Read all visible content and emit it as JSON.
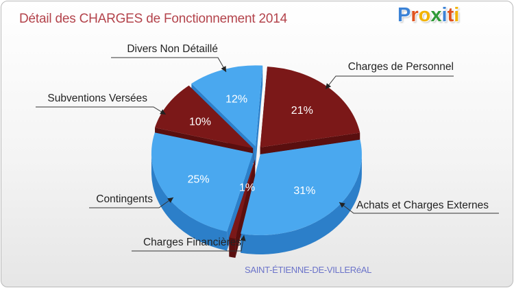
{
  "header": {
    "title": "Détail des CHARGES de Fonctionnement 2014",
    "subtitle": "SAINT-ÉTIENNE-DE-VILLERéAL"
  },
  "logo": {
    "letters": [
      {
        "char": "P",
        "color": "#3b82d6"
      },
      {
        "char": "r",
        "color": "#e0531f"
      },
      {
        "char": "o",
        "color": "#f2b300"
      },
      {
        "char": "x",
        "color": "#2f9a38"
      },
      {
        "char": "i",
        "color": "#3b82d6"
      },
      {
        "char": "t",
        "color": "#e0531f"
      },
      {
        "char": "i",
        "color": "#f2b300"
      }
    ]
  },
  "colors": {
    "blue_top": "#4aa8ef",
    "blue_side": "#2c7fc9",
    "red_top": "#7b1818",
    "red_side": "#5a0f0f",
    "title": "#b3434b",
    "subtitle": "#6b73c9"
  },
  "chart_data": {
    "type": "pie",
    "title": "Détail des CHARGES de Fonctionnement 2014",
    "subtitle": "SAINT-ÉTIENNE-DE-VILLERéAL",
    "unit": "%",
    "slices": [
      {
        "label": "Charges de Personnel",
        "value": 21,
        "display": "21%",
        "color": "red"
      },
      {
        "label": "Achats et Charges Externes",
        "value": 31,
        "display": "31%",
        "color": "blue"
      },
      {
        "label": "Charges Financières",
        "value": 1,
        "display": "1%",
        "color": "red"
      },
      {
        "label": "Contingents",
        "value": 25,
        "display": "25%",
        "color": "blue"
      },
      {
        "label": "Subventions Versées",
        "value": 10,
        "display": "10%",
        "color": "red"
      },
      {
        "label": "Divers Non Détaillé",
        "value": 12,
        "display": "12%",
        "color": "blue"
      }
    ]
  }
}
